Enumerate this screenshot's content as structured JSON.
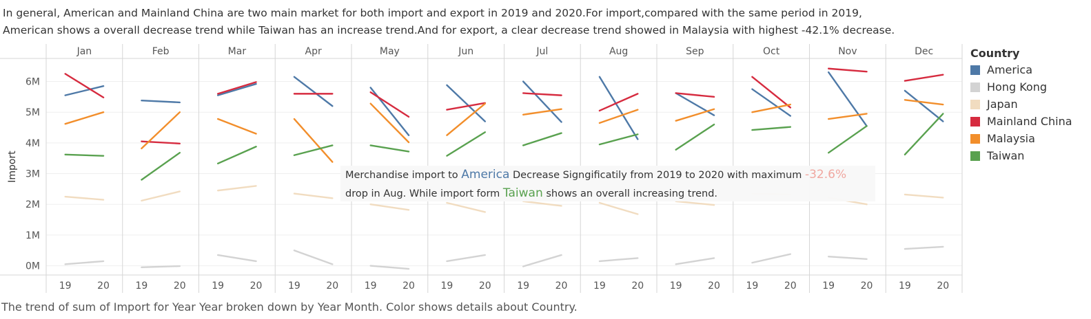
{
  "intro": {
    "line1": "In general, American and Mainland China are two main market for both import and export in 2019 and 2020.For import,compared with the same period in 2019,",
    "line2": "American shows a overall decrease trend while Taiwan has an increase trend.And for export, a clear decrease trend showed in Malaysia with highest -42.1% decrease."
  },
  "caption": "The trend of sum of Import for Year Year broken down by Year Month.  Color shows details about Country.",
  "tooltip": {
    "p1": "Merchandise import to ",
    "america": "America",
    "p2": " Decrease Signgificatily from 2019 to 2020 with maximum ",
    "pct": "-32.6%",
    "p3": "drop in Aug. While import form ",
    "taiwan": "Taiwan",
    "p4": " shows an overall increasing trend."
  },
  "legend": {
    "title": "Country",
    "items": [
      {
        "label": "America",
        "color": "#4e79a7"
      },
      {
        "label": "Hong Kong",
        "color": "#d3d3d3"
      },
      {
        "label": "Japan",
        "color": "#f1dcc0"
      },
      {
        "label": "Mainland China",
        "color": "#d62b3f"
      },
      {
        "label": "Malaysia",
        "color": "#f28e2b"
      },
      {
        "label": "Taiwan",
        "color": "#59a14f"
      }
    ]
  },
  "chart_data": {
    "type": "line",
    "ylabel": "Import",
    "y_ticks": [
      {
        "value": 0,
        "label": "0M"
      },
      {
        "value": 1,
        "label": "1M"
      },
      {
        "value": 2,
        "label": "2M"
      },
      {
        "value": 3,
        "label": "3M"
      },
      {
        "value": 4,
        "label": "4M"
      },
      {
        "value": 5,
        "label": "5M"
      },
      {
        "value": 6,
        "label": "6M"
      }
    ],
    "ylim": [
      -0.3,
      6.75
    ],
    "units": "M",
    "months": [
      "Jan",
      "Feb",
      "Mar",
      "Apr",
      "May",
      "Jun",
      "Jul",
      "Aug",
      "Sep",
      "Oct",
      "Nov",
      "Dec"
    ],
    "years": [
      "19",
      "20"
    ],
    "series": [
      {
        "name": "America",
        "color": "#4e79a7",
        "values": [
          [
            5.55,
            5.85
          ],
          [
            5.38,
            5.32
          ],
          [
            5.55,
            5.92
          ],
          [
            6.15,
            5.2
          ],
          [
            5.8,
            4.25
          ],
          [
            5.88,
            4.7
          ],
          [
            6.0,
            4.68
          ],
          [
            6.15,
            4.12
          ],
          [
            5.62,
            4.9
          ],
          [
            5.75,
            4.88
          ],
          [
            6.3,
            4.55
          ],
          [
            5.7,
            4.7
          ]
        ]
      },
      {
        "name": "Hong Kong",
        "color": "#d3d3d3",
        "values": [
          [
            0.05,
            0.15
          ],
          [
            -0.05,
            -0.01
          ],
          [
            0.35,
            0.15
          ],
          [
            0.5,
            0.05
          ],
          [
            0.0,
            -0.1
          ],
          [
            0.15,
            0.35
          ],
          [
            -0.02,
            0.35
          ],
          [
            0.15,
            0.25
          ],
          [
            0.05,
            0.25
          ],
          [
            0.1,
            0.38
          ],
          [
            0.3,
            0.22
          ],
          [
            0.55,
            0.62
          ]
        ]
      },
      {
        "name": "Japan",
        "color": "#f1dcc0",
        "values": [
          [
            2.25,
            2.15
          ],
          [
            2.12,
            2.42
          ],
          [
            2.45,
            2.6
          ],
          [
            2.35,
            2.2
          ],
          [
            2.0,
            1.82
          ],
          [
            2.05,
            1.75
          ],
          [
            2.1,
            1.95
          ],
          [
            2.05,
            1.68
          ],
          [
            2.1,
            1.98
          ],
          [
            2.35,
            2.32
          ],
          [
            2.22,
            2.0
          ],
          [
            2.32,
            2.22
          ]
        ]
      },
      {
        "name": "Mainland China",
        "color": "#d62b3f",
        "values": [
          [
            6.25,
            5.48
          ],
          [
            4.05,
            3.98
          ],
          [
            5.6,
            5.98
          ],
          [
            5.6,
            5.6
          ],
          [
            5.65,
            4.85
          ],
          [
            5.08,
            5.3
          ],
          [
            5.62,
            5.55
          ],
          [
            5.05,
            5.6
          ],
          [
            5.62,
            5.5
          ],
          [
            6.15,
            5.15
          ],
          [
            6.42,
            6.32
          ],
          [
            6.02,
            6.22
          ]
        ]
      },
      {
        "name": "Malaysia",
        "color": "#f28e2b",
        "values": [
          [
            4.62,
            5.0
          ],
          [
            3.82,
            5.0
          ],
          [
            4.78,
            4.3
          ],
          [
            4.78,
            3.38
          ],
          [
            5.28,
            4.02
          ],
          [
            4.25,
            5.28
          ],
          [
            4.92,
            5.1
          ],
          [
            4.65,
            5.08
          ],
          [
            4.72,
            5.1
          ],
          [
            5.0,
            5.25
          ],
          [
            4.78,
            4.95
          ],
          [
            5.4,
            5.25
          ]
        ]
      },
      {
        "name": "Taiwan",
        "color": "#59a14f",
        "values": [
          [
            3.62,
            3.58
          ],
          [
            2.8,
            3.68
          ],
          [
            3.33,
            3.88
          ],
          [
            3.6,
            3.92
          ],
          [
            3.92,
            3.72
          ],
          [
            3.58,
            4.35
          ],
          [
            3.92,
            4.32
          ],
          [
            3.95,
            4.28
          ],
          [
            3.78,
            4.6
          ],
          [
            4.42,
            4.52
          ],
          [
            3.68,
            4.55
          ],
          [
            3.62,
            4.95
          ]
        ]
      }
    ]
  }
}
